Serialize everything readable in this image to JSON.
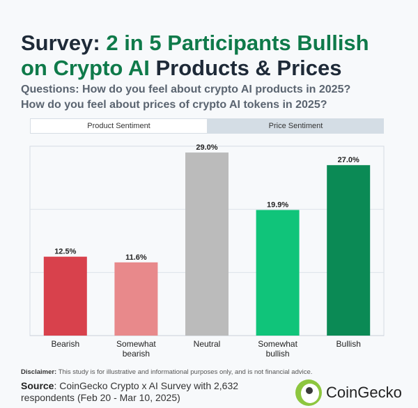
{
  "header": {
    "title_prefix": "Survey: ",
    "title_highlight_1": "2 in 5 Participants Bullish",
    "title_highlight_2": "on Crypto AI",
    "title_suffix": " Products & Prices",
    "subtitle_line1": "Questions: How do you feel about crypto AI products in 2025?",
    "subtitle_line2": "How do you feel about prices of crypto AI tokens in 2025?"
  },
  "tabs": [
    {
      "label": "Product Sentiment",
      "active": true
    },
    {
      "label": "Price Sentiment",
      "active": false
    }
  ],
  "chart_data": {
    "type": "bar",
    "categories": [
      "Bearish",
      "Somewhat bearish",
      "Neutral",
      "Somewhat bullish",
      "Bullish"
    ],
    "category_lines": [
      [
        "Bearish"
      ],
      [
        "Somewhat",
        "bearish"
      ],
      [
        "Neutral"
      ],
      [
        "Somewhat",
        "bullish"
      ],
      [
        "Bullish"
      ]
    ],
    "values": [
      12.5,
      11.6,
      29.0,
      19.9,
      27.0
    ],
    "data_labels": [
      "12.5%",
      "11.6%",
      "29.0%",
      "19.9%",
      "27.0%"
    ],
    "colors": [
      "#d8414c",
      "#e8898b",
      "#bbbbbb",
      "#10c47a",
      "#0b8a55"
    ],
    "ylim": [
      0,
      30
    ],
    "grid": true
  },
  "footer": {
    "disclaimer_label": "Disclaimer:",
    "disclaimer_text": " This study is for illustrative and informational purposes only, and is not financial advice.",
    "source_label": "Source",
    "source_text": ": CoinGecko Crypto x AI Survey with 2,632 respondents (Feb 20 - Mar 10, 2025)",
    "logo_text": "CoinGecko"
  },
  "colors": {
    "title_dark": "#1e2a38",
    "title_green": "#0f7a4a",
    "background": "#f7f9fb"
  }
}
